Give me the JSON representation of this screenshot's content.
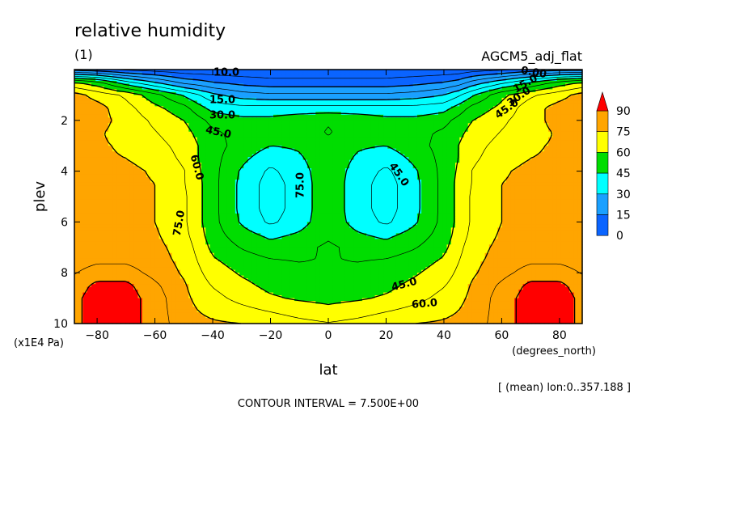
{
  "chart_data": {
    "type": "heatmap",
    "title": "relative humidity",
    "subtitle": "(1)",
    "dataset_label": "AGCM5_adj_flat",
    "xlabel": "lat",
    "xunit": "(degrees_north)",
    "ylabel": "plev",
    "yunit": "(x1E4 Pa)",
    "xlim": [
      -87.86,
      87.86
    ],
    "ylim": [
      10,
      0
    ],
    "x_ticks": [
      -80,
      -60,
      -40,
      -20,
      0,
      20,
      40,
      60,
      80
    ],
    "x_tick_labels": [
      "-80",
      "-60",
      "-40",
      "-20",
      "0",
      "20",
      "40",
      "60",
      "80"
    ],
    "y_ticks": [
      2,
      4,
      6,
      8,
      10
    ],
    "y_tick_labels": [
      "2",
      "4",
      "6",
      "8",
      "10"
    ],
    "contour_interval": "CONTOUR INTERVAL = 7.500E+00",
    "footer_note": "[ (mean) lon:0..357.188 ]",
    "contour_labels": [
      "10.0",
      "15.0",
      "30.0",
      "45.0",
      "60.0",
      "75.0",
      "45.0",
      "45.0",
      "60.0",
      "75.0",
      "0.00",
      "15.0",
      "30.0",
      "45.0"
    ],
    "levels": [
      0,
      15,
      30,
      45,
      60,
      75,
      90
    ],
    "level_colors": [
      "#0a64ff",
      "#1aa0ff",
      "#00ffff",
      "#00dd00",
      "#ffff00",
      "#ffa500",
      "#ff0000"
    ],
    "colorbar_labels": [
      "90",
      "75",
      "60",
      "45",
      "30",
      "15",
      "0"
    ],
    "lat_nodes": [
      -87.86,
      -80,
      -70,
      -60,
      -50,
      -45,
      -40,
      -30,
      -20,
      -10,
      0,
      10,
      20,
      30,
      40,
      45,
      50,
      60,
      70,
      80,
      87.86
    ],
    "plev_nodes": [
      0,
      0.5,
      1,
      1.5,
      2,
      2.5,
      3,
      3.5,
      4,
      4.5,
      5,
      5.5,
      6,
      6.5,
      7,
      7.5,
      8,
      8.5,
      9,
      9.5,
      10
    ],
    "values_rows_by_plev": [
      [
        12,
        10,
        6,
        4,
        2,
        2,
        2,
        2,
        2,
        2,
        2,
        2,
        2,
        2,
        2,
        2,
        4,
        6,
        10,
        12,
        12
      ],
      [
        60,
        55,
        40,
        30,
        20,
        18,
        15,
        12,
        10,
        10,
        10,
        10,
        10,
        12,
        15,
        18,
        25,
        35,
        45,
        55,
        60
      ],
      [
        78,
        72,
        66,
        55,
        44,
        38,
        32,
        26,
        24,
        24,
        24,
        24,
        24,
        26,
        30,
        36,
        44,
        58,
        66,
        72,
        78
      ],
      [
        80,
        78,
        70,
        62,
        55,
        48,
        42,
        40,
        40,
        40,
        40,
        40,
        40,
        40,
        42,
        48,
        55,
        62,
        72,
        78,
        80
      ],
      [
        80,
        78,
        72,
        66,
        60,
        55,
        50,
        47,
        47,
        50,
        52,
        50,
        47,
        47,
        50,
        55,
        60,
        66,
        72,
        78,
        80
      ],
      [
        78,
        76,
        72,
        68,
        63,
        58,
        54,
        50,
        48,
        50,
        53,
        50,
        48,
        50,
        54,
        58,
        63,
        68,
        72,
        76,
        78
      ],
      [
        76,
        76,
        74,
        70,
        65,
        60,
        55,
        50,
        45,
        46,
        50,
        46,
        45,
        50,
        55,
        60,
        65,
        70,
        74,
        76,
        76
      ],
      [
        76,
        76,
        75,
        72,
        66,
        60,
        55,
        47,
        40,
        44,
        50,
        44,
        40,
        47,
        55,
        60,
        66,
        72,
        75,
        76,
        76
      ],
      [
        76,
        77,
        77,
        74,
        68,
        61,
        55,
        44,
        36,
        42,
        50,
        42,
        36,
        44,
        55,
        61,
        68,
        74,
        77,
        77,
        76
      ],
      [
        76,
        77,
        77,
        75,
        68,
        62,
        55,
        43,
        34,
        41,
        50,
        41,
        34,
        43,
        55,
        62,
        68,
        75,
        77,
        77,
        76
      ],
      [
        76,
        77,
        77,
        75,
        69,
        62,
        55,
        43,
        34,
        41,
        50,
        41,
        34,
        43,
        55,
        62,
        69,
        75,
        77,
        77,
        76
      ],
      [
        76,
        77,
        77,
        75,
        69,
        62,
        55,
        43,
        34,
        41,
        50,
        41,
        34,
        43,
        55,
        62,
        69,
        75,
        77,
        77,
        76
      ],
      [
        76,
        77,
        77,
        75,
        69,
        62,
        55,
        44,
        36,
        42,
        50,
        42,
        36,
        44,
        55,
        62,
        69,
        75,
        77,
        77,
        76
      ],
      [
        77,
        78,
        78,
        76,
        70,
        63,
        56,
        48,
        43,
        46,
        51,
        46,
        43,
        48,
        56,
        63,
        70,
        76,
        78,
        78,
        77
      ],
      [
        78,
        79,
        79,
        77,
        72,
        65,
        58,
        52,
        48,
        50,
        54,
        50,
        48,
        52,
        58,
        65,
        72,
        77,
        79,
        79,
        78
      ],
      [
        79,
        81,
        81,
        78,
        73,
        67,
        61,
        56,
        53,
        52,
        53,
        52,
        53,
        56,
        61,
        67,
        73,
        78,
        81,
        81,
        79
      ],
      [
        82,
        86,
        86,
        80,
        74,
        69,
        64,
        59,
        56,
        55,
        55,
        55,
        56,
        59,
        64,
        69,
        74,
        80,
        86,
        86,
        82
      ],
      [
        86,
        92,
        92,
        84,
        76,
        71,
        67,
        62,
        58,
        57,
        57,
        57,
        58,
        62,
        67,
        71,
        76,
        84,
        92,
        92,
        86
      ],
      [
        88,
        94,
        94,
        86,
        77,
        73,
        70,
        65,
        61,
        59,
        58,
        59,
        61,
        65,
        70,
        73,
        77,
        86,
        94,
        94,
        88
      ],
      [
        88,
        94,
        94,
        86,
        78,
        75,
        73,
        70,
        67,
        64,
        62,
        64,
        67,
        70,
        73,
        75,
        78,
        86,
        94,
        94,
        88
      ],
      [
        88,
        94,
        94,
        86,
        79,
        77,
        76,
        75,
        73,
        70,
        68,
        70,
        73,
        75,
        76,
        77,
        79,
        86,
        94,
        94,
        88
      ]
    ]
  }
}
